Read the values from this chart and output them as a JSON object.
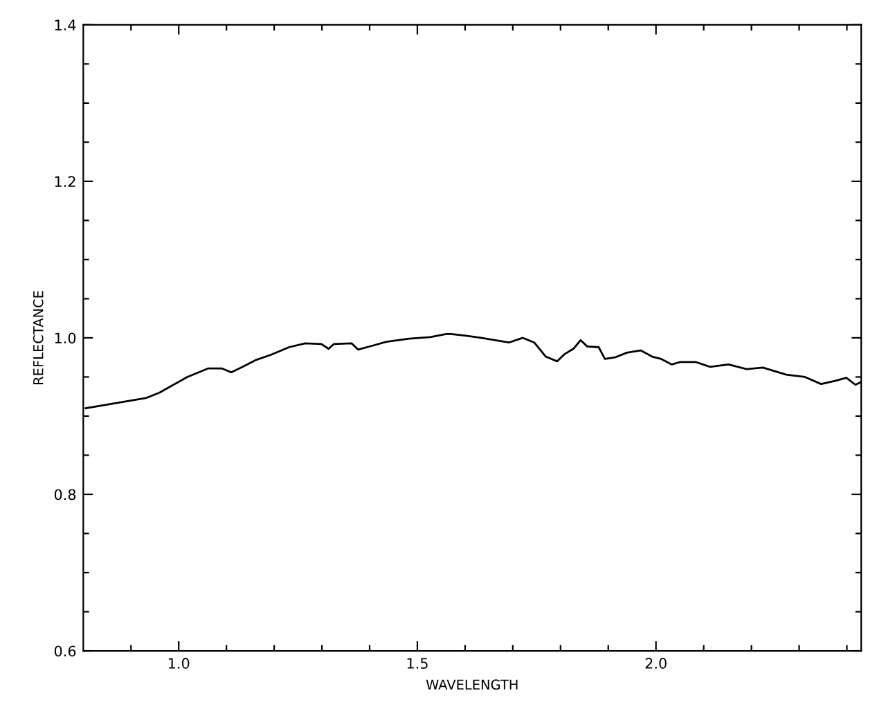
{
  "chart_data": {
    "type": "line",
    "xlabel": "WAVELENGTH",
    "ylabel": "REFLECTANCE",
    "xlim": [
      0.8,
      2.43
    ],
    "ylim": [
      0.6,
      1.4
    ],
    "xticks": [
      {
        "value": 0.9,
        "label": null
      },
      {
        "value": 1.0,
        "label": "1.0"
      },
      {
        "value": 1.1,
        "label": null
      },
      {
        "value": 1.2,
        "label": null
      },
      {
        "value": 1.3,
        "label": null
      },
      {
        "value": 1.4,
        "label": null
      },
      1.5,
      {
        "value": 1.6,
        "label": null
      },
      {
        "value": 1.7,
        "label": null
      },
      {
        "value": 1.8,
        "label": null
      },
      {
        "value": 1.9,
        "label": null
      },
      {
        "value": 2.0,
        "label": "2.0"
      },
      {
        "value": 2.1,
        "label": null
      },
      {
        "value": 2.2,
        "label": null
      },
      {
        "value": 2.3,
        "label": null
      },
      {
        "value": 2.4,
        "label": null
      }
    ],
    "yticks": [
      0.6,
      {
        "value": 0.65,
        "label": null
      },
      {
        "value": 0.7,
        "label": null
      },
      {
        "value": 0.75,
        "label": null
      },
      0.8,
      {
        "value": 0.85,
        "label": null
      },
      {
        "value": 0.9,
        "label": null
      },
      {
        "value": 0.95,
        "label": null
      },
      {
        "value": 1.0,
        "label": "1.0"
      },
      {
        "value": 1.05,
        "label": null
      },
      {
        "value": 1.1,
        "label": null
      },
      {
        "value": 1.15,
        "label": null
      },
      1.2,
      {
        "value": 1.25,
        "label": null
      },
      {
        "value": 1.3,
        "label": null
      },
      {
        "value": 1.35,
        "label": null
      },
      1.4
    ],
    "grid": false,
    "legend": false,
    "line_style": "solid",
    "series": [
      {
        "color": "#000000",
        "x": [
          0.805,
          0.931,
          0.96,
          1.018,
          1.062,
          1.09,
          1.11,
          1.134,
          1.163,
          1.192,
          1.231,
          1.265,
          1.299,
          1.314,
          1.325,
          1.362,
          1.376,
          1.406,
          1.435,
          1.483,
          1.527,
          1.561,
          1.57,
          1.599,
          1.633,
          1.692,
          1.721,
          1.745,
          1.769,
          1.793,
          1.808,
          1.827,
          1.842,
          1.856,
          1.88,
          1.893,
          1.914,
          1.939,
          1.968,
          1.992,
          2.011,
          2.033,
          2.05,
          2.084,
          2.113,
          2.152,
          2.19,
          2.224,
          2.273,
          2.312,
          2.346,
          2.375,
          2.399,
          2.418,
          2.428
        ],
        "values": [
          0.91,
          0.923,
          0.93,
          0.95,
          0.961,
          0.961,
          0.956,
          0.963,
          0.972,
          0.978,
          0.988,
          0.993,
          0.992,
          0.986,
          0.992,
          0.993,
          0.985,
          0.99,
          0.995,
          0.999,
          1.001,
          1.005,
          1.005,
          1.003,
          1.0,
          0.994,
          1.0,
          0.994,
          0.976,
          0.97,
          0.979,
          0.986,
          0.997,
          0.989,
          0.988,
          0.973,
          0.975,
          0.981,
          0.984,
          0.976,
          0.973,
          0.966,
          0.969,
          0.969,
          0.963,
          0.966,
          0.96,
          0.962,
          0.953,
          0.95,
          0.941,
          0.945,
          0.949,
          0.94,
          0.943
        ]
      }
    ]
  }
}
